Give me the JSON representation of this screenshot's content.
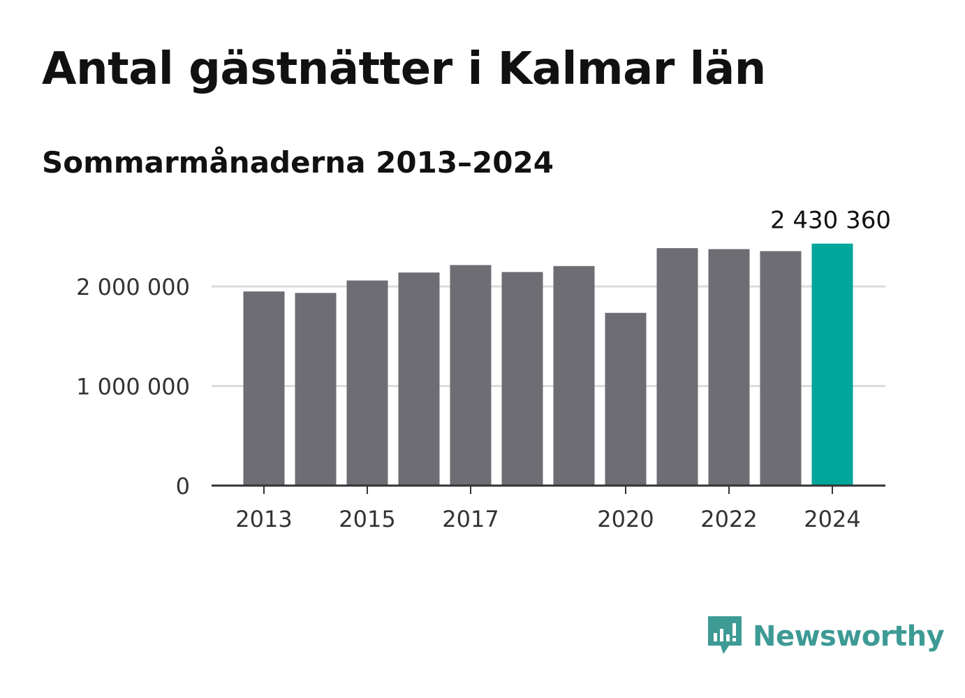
{
  "header": {
    "title": "Antal gästnätter i Kalmar län",
    "subtitle": "Sommarmånaderna 2013–2024"
  },
  "brand": {
    "name": "Newsworthy",
    "icon": "newsworthy-logo-icon",
    "color": "#3d9a94"
  },
  "colors": {
    "bar": "#6e6d73",
    "highlight": "#00a59b",
    "grid": "#dcdcdc",
    "axis": "#333333"
  },
  "chart_data": {
    "type": "bar",
    "categories": [
      "2013",
      "2014",
      "2015",
      "2016",
      "2017",
      "2018",
      "2019",
      "2020",
      "2021",
      "2022",
      "2023",
      "2024"
    ],
    "values": [
      1950000,
      1935000,
      2060000,
      2140000,
      2215000,
      2145000,
      2205000,
      1735000,
      2385000,
      2375000,
      2355000,
      2430360
    ],
    "highlight_index": 11,
    "highlight_label": "2 430 360",
    "x_tick_labels": [
      "2013",
      "2015",
      "2017",
      "2020",
      "2022",
      "2024"
    ],
    "y_ticks": [
      {
        "value": 0,
        "label": "0"
      },
      {
        "value": 1000000,
        "label": "1 000 000"
      },
      {
        "value": 2000000,
        "label": "2 000 000"
      }
    ],
    "ylim": [
      0,
      2500000
    ],
    "grid": true
  }
}
